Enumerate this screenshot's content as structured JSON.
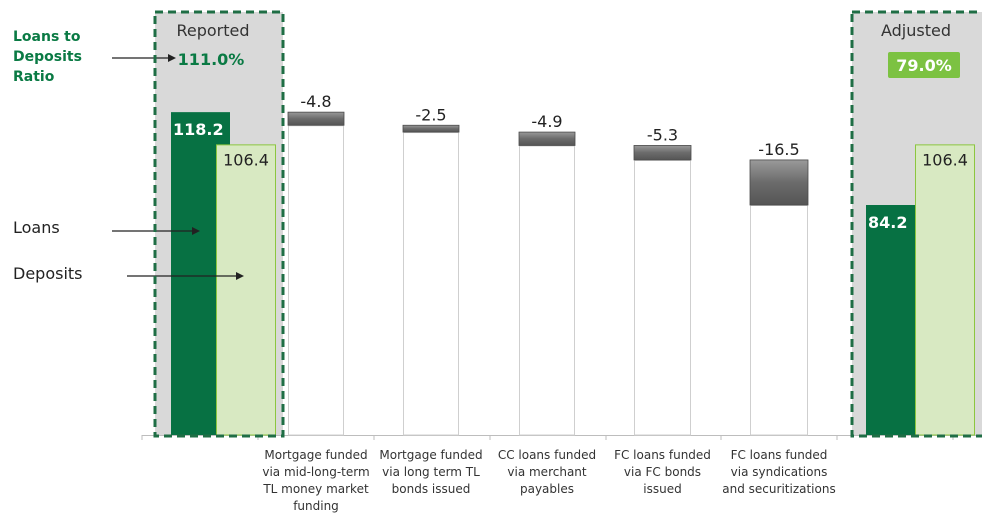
{
  "side_labels": {
    "ratio_line1": "Loans to",
    "ratio_line2": "Deposits",
    "ratio_line3": "Ratio",
    "loans": "Loans",
    "deposits": "Deposits"
  },
  "chart_data": {
    "type": "bar",
    "subtype": "waterfall",
    "ylim": [
      0,
      130
    ],
    "grid": false,
    "groups": [
      {
        "title": "Reported",
        "ratio": "111.0%",
        "loans": 118.2,
        "deposits": 106.4,
        "loans_label": "118.2",
        "deposits_label": "106.4"
      },
      {
        "title": "Adjusted",
        "ratio": "79.0%",
        "loans": 84.2,
        "deposits": 106.4,
        "loans_label": "84.2",
        "deposits_label": "106.4"
      }
    ],
    "categories": [
      "Mortgage funded via mid-long-term TL money market funding",
      "Mortgage funded via long term TL bonds issued",
      "CC loans funded via merchant payables",
      "FC loans funded via FC bonds issued",
      "FC loans funded via syndications and securitizations"
    ],
    "category_lines": [
      [
        "Mortgage funded",
        "via mid-long-term",
        "TL money market",
        "funding"
      ],
      [
        "Mortgage funded",
        "via long term TL",
        "bonds issued"
      ],
      [
        "CC loans funded",
        "via merchant",
        "payables"
      ],
      [
        "FC loans funded",
        "via FC bonds",
        "issued"
      ],
      [
        "FC loans funded",
        "via syndications",
        "and securitizations"
      ]
    ],
    "values": [
      -4.8,
      -2.5,
      -4.9,
      -5.3,
      -16.5
    ],
    "value_labels": [
      "-4.8",
      "-2.5",
      "-4.9",
      "-5.3",
      "-16.5"
    ],
    "colors": {
      "loans": "#077143",
      "deposits": "#d8e9c2",
      "deposits_border": "#8cc63f",
      "decrement": "#6b6b6b",
      "ghost_border": "#cfcfcf",
      "group_bg": "#d9d9d9",
      "group_border": "#1f6e45",
      "ratio_reported": "#0a7a44",
      "ratio_adjusted_bg": "#7cc242"
    }
  }
}
